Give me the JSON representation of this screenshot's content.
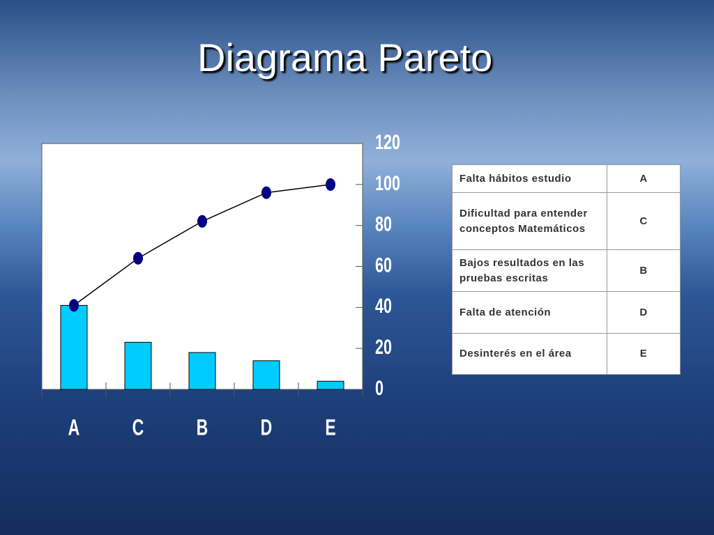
{
  "chart_data": {
    "type": "pareto",
    "title": "Diagrama Pareto",
    "categories": [
      "A",
      "C",
      "B",
      "D",
      "E"
    ],
    "series": [
      {
        "type": "bar",
        "color": "#00ccff",
        "values": [
          41,
          23,
          18,
          14,
          4
        ]
      },
      {
        "type": "line",
        "color": "#000000",
        "marker_color": "#000080",
        "values": [
          41,
          64,
          82,
          96,
          100
        ]
      }
    ],
    "ylim": [
      0,
      120
    ],
    "yticks": [
      0,
      20,
      40,
      60,
      80,
      100,
      120
    ],
    "y_axis_side": "right"
  },
  "table": {
    "rows": [
      [
        "Falta hábitos estudio",
        "A"
      ],
      [
        "Dificultad para entender conceptos Matemáticos",
        "C"
      ],
      [
        "Bajos resultados en las pruebas escritas",
        "B"
      ],
      [
        "Falta de atención",
        "D"
      ],
      [
        "Desinterés en el área",
        "E"
      ]
    ]
  }
}
